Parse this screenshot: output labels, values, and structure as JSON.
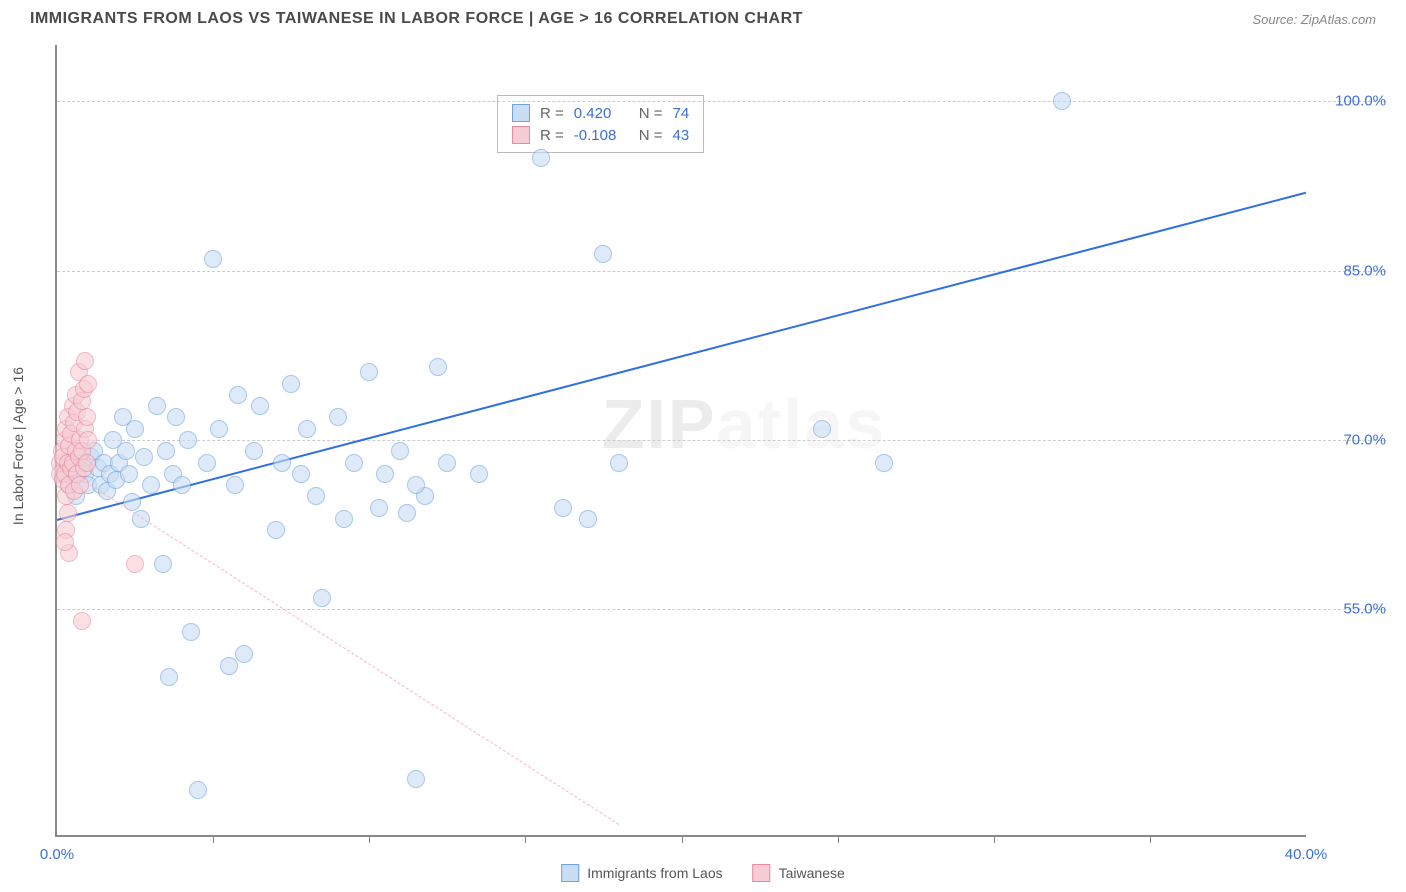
{
  "title": "IMMIGRANTS FROM LAOS VS TAIWANESE IN LABOR FORCE | AGE > 16 CORRELATION CHART",
  "source_label": "Source: ZipAtlas.com",
  "ylabel": "In Labor Force | Age > 16",
  "watermark": "ZIPatlas",
  "chart": {
    "type": "scatter",
    "xlim": [
      0,
      40
    ],
    "ylim": [
      35,
      105
    ],
    "xtick_values": [
      0,
      40
    ],
    "xtick_labels": [
      "0.0%",
      "40.0%"
    ],
    "xtick_minor": [
      5,
      10,
      15,
      20,
      25,
      30,
      35
    ],
    "ytick_values": [
      55,
      70,
      85,
      100
    ],
    "ytick_labels": [
      "55.0%",
      "70.0%",
      "85.0%",
      "100.0%"
    ],
    "background_color": "#ffffff",
    "grid_color": "#cccccc",
    "axis_color": "#888888",
    "tick_label_color": "#3b6fd6",
    "point_radius": 9,
    "series": [
      {
        "name": "Immigrants from Laos",
        "fill": "#c9ddf5",
        "stroke": "#6fa3e0",
        "fill_opacity": 0.6,
        "R": "0.420",
        "N": "74",
        "trend": {
          "x1": 0,
          "y1": 63,
          "x2": 40,
          "y2": 92,
          "color": "#2f6fe0",
          "width": 2.5,
          "dash": false
        },
        "points": [
          [
            0.2,
            67
          ],
          [
            0.4,
            66
          ],
          [
            0.4,
            68
          ],
          [
            0.6,
            67
          ],
          [
            0.6,
            65
          ],
          [
            0.8,
            68
          ],
          [
            0.9,
            67
          ],
          [
            1.0,
            66
          ],
          [
            1.1,
            68.5
          ],
          [
            1.2,
            69
          ],
          [
            1.3,
            67.5
          ],
          [
            1.4,
            66
          ],
          [
            1.5,
            68
          ],
          [
            1.6,
            65.5
          ],
          [
            1.7,
            67
          ],
          [
            1.8,
            70
          ],
          [
            1.9,
            66.5
          ],
          [
            2.0,
            68
          ],
          [
            2.1,
            72
          ],
          [
            2.2,
            69
          ],
          [
            2.3,
            67
          ],
          [
            2.4,
            64.5
          ],
          [
            2.5,
            71
          ],
          [
            2.7,
            63
          ],
          [
            2.8,
            68.5
          ],
          [
            3.0,
            66
          ],
          [
            3.2,
            73
          ],
          [
            3.4,
            59
          ],
          [
            3.5,
            69
          ],
          [
            3.6,
            49
          ],
          [
            3.7,
            67
          ],
          [
            3.8,
            72
          ],
          [
            4.0,
            66
          ],
          [
            4.2,
            70
          ],
          [
            4.3,
            53
          ],
          [
            4.5,
            39
          ],
          [
            4.8,
            68
          ],
          [
            5.0,
            86
          ],
          [
            5.2,
            71
          ],
          [
            5.5,
            50
          ],
          [
            5.7,
            66
          ],
          [
            5.8,
            74
          ],
          [
            6.0,
            51
          ],
          [
            6.3,
            69
          ],
          [
            6.5,
            73
          ],
          [
            7.0,
            62
          ],
          [
            7.2,
            68
          ],
          [
            7.5,
            75
          ],
          [
            7.8,
            67
          ],
          [
            8.0,
            71
          ],
          [
            8.3,
            65
          ],
          [
            8.5,
            56
          ],
          [
            9.0,
            72
          ],
          [
            9.2,
            63
          ],
          [
            9.5,
            68
          ],
          [
            10.0,
            76
          ],
          [
            10.3,
            64
          ],
          [
            10.5,
            67
          ],
          [
            11.0,
            69
          ],
          [
            11.2,
            63.5
          ],
          [
            11.8,
            65
          ],
          [
            12.2,
            76.5
          ],
          [
            12.5,
            68
          ],
          [
            11.5,
            40
          ],
          [
            13.5,
            67
          ],
          [
            11.5,
            66
          ],
          [
            15.5,
            95
          ],
          [
            16.2,
            64
          ],
          [
            17.0,
            63
          ],
          [
            17.5,
            86.5
          ],
          [
            18.0,
            68
          ],
          [
            24.5,
            71
          ],
          [
            26.5,
            68
          ],
          [
            32.2,
            100
          ]
        ]
      },
      {
        "name": "Taiwanese",
        "fill": "#f7cdd5",
        "stroke": "#e88aa0",
        "fill_opacity": 0.6,
        "R": "-0.108",
        "N": "43",
        "trend": {
          "x1": 0,
          "y1": 68,
          "x2": 18,
          "y2": 36,
          "color": "#f5b8c5",
          "width": 1.5,
          "dash": true
        },
        "points": [
          [
            0.1,
            68
          ],
          [
            0.1,
            67
          ],
          [
            0.15,
            69
          ],
          [
            0.2,
            66.5
          ],
          [
            0.2,
            68.5
          ],
          [
            0.25,
            70
          ],
          [
            0.25,
            67
          ],
          [
            0.3,
            71
          ],
          [
            0.3,
            65
          ],
          [
            0.35,
            68
          ],
          [
            0.35,
            72
          ],
          [
            0.4,
            69.5
          ],
          [
            0.4,
            66
          ],
          [
            0.45,
            70.5
          ],
          [
            0.45,
            67.5
          ],
          [
            0.5,
            73
          ],
          [
            0.5,
            68
          ],
          [
            0.55,
            71.5
          ],
          [
            0.55,
            65.5
          ],
          [
            0.6,
            69
          ],
          [
            0.6,
            74
          ],
          [
            0.65,
            67
          ],
          [
            0.65,
            72.5
          ],
          [
            0.7,
            68.5
          ],
          [
            0.7,
            76
          ],
          [
            0.75,
            70
          ],
          [
            0.75,
            66
          ],
          [
            0.8,
            73.5
          ],
          [
            0.8,
            69
          ],
          [
            0.85,
            74.5
          ],
          [
            0.85,
            67.5
          ],
          [
            0.9,
            71
          ],
          [
            0.9,
            77
          ],
          [
            0.95,
            68
          ],
          [
            0.95,
            72
          ],
          [
            1.0,
            70
          ],
          [
            1.0,
            75
          ],
          [
            0.3,
            62
          ],
          [
            0.4,
            60
          ],
          [
            0.35,
            63.5
          ],
          [
            0.8,
            54
          ],
          [
            0.25,
            61
          ],
          [
            2.5,
            59
          ]
        ]
      }
    ],
    "legend_bottom": [
      {
        "label": "Immigrants from Laos",
        "fill": "#c9ddf5",
        "stroke": "#6fa3e0"
      },
      {
        "label": "Taiwanese",
        "fill": "#f7cdd5",
        "stroke": "#e88aa0"
      }
    ],
    "corr_label_r": "R =",
    "corr_label_n": "N =",
    "corr_value_color": "#3b6fd6",
    "corr_text_color": "#666666"
  }
}
